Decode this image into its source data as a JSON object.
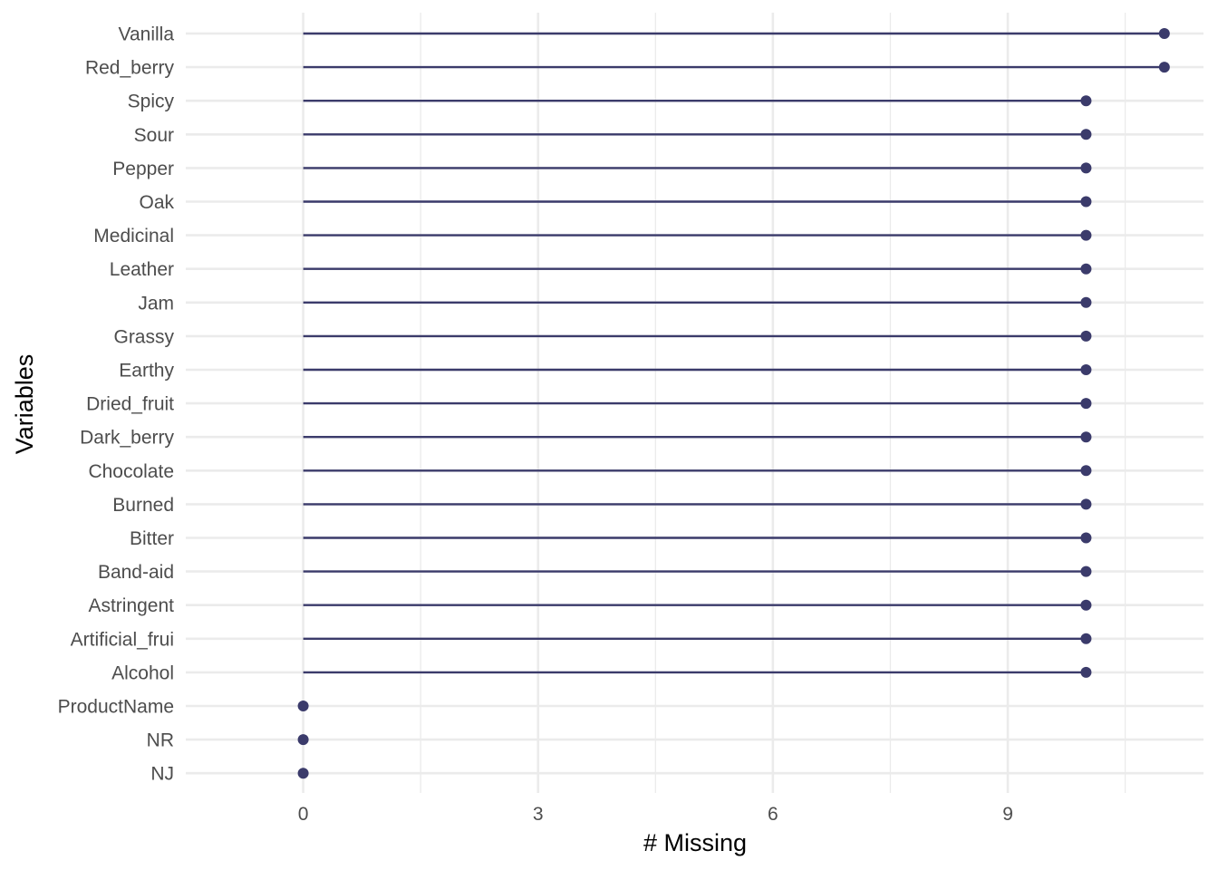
{
  "chart_data": {
    "type": "lollipop",
    "xlabel": "# Missing",
    "ylabel": "Variables",
    "xlim": [
      -1.5,
      11.5
    ],
    "x_ticks": [
      0,
      3,
      6,
      9
    ],
    "x_minor_ticks": [
      1.5,
      4.5,
      7.5,
      10.5
    ],
    "grid": true,
    "legend": "none",
    "color": "#3b3b6b",
    "categories": [
      "Vanilla",
      "Red_berry",
      "Spicy",
      "Sour",
      "Pepper",
      "Oak",
      "Medicinal",
      "Leather",
      "Jam",
      "Grassy",
      "Earthy",
      "Dried_fruit",
      "Dark_berry",
      "Chocolate",
      "Burned",
      "Bitter",
      "Band-aid",
      "Astringent",
      "Artificial_frui",
      "Alcohol",
      "ProductName",
      "NR",
      "NJ"
    ],
    "values": [
      11,
      11,
      10,
      10,
      10,
      10,
      10,
      10,
      10,
      10,
      10,
      10,
      10,
      10,
      10,
      10,
      10,
      10,
      10,
      10,
      0,
      0,
      0
    ]
  }
}
